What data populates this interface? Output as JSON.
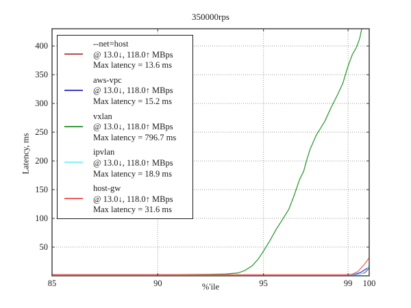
{
  "chart_data": {
    "type": "line",
    "title": "350000rps",
    "xlabel": "%'ile",
    "ylabel": "Latency, ms",
    "xlim": [
      85,
      100
    ],
    "ylim": [
      0,
      430
    ],
    "xticks": [
      85,
      90,
      95,
      99,
      100
    ],
    "yticks": [
      50,
      100,
      150,
      200,
      250,
      300,
      350,
      400
    ],
    "grid": "dotted",
    "legend_position": "upper-left",
    "frame_color": "#444444",
    "grid_color": "#999999",
    "series": [
      {
        "name": "--net=host",
        "rate": "@ 13.0↓, 118.0↑ MBps",
        "max_label": "Max latency = 13.6 ms",
        "max_latency_ms": 13.6,
        "color": "#bc4a47",
        "points": [
          [
            85,
            0.8
          ],
          [
            99,
            0.8
          ],
          [
            99.5,
            2
          ],
          [
            99.8,
            5.5
          ],
          [
            100,
            13.6
          ]
        ]
      },
      {
        "name": "aws-vpc",
        "rate": "@ 13.0↓, 118.0↑ MBps",
        "max_label": "Max latency = 15.2 ms",
        "max_latency_ms": 15.2,
        "color": "#3b3bcc",
        "points": [
          [
            85,
            1.5
          ],
          [
            98.8,
            1.5
          ],
          [
            99.3,
            2.3
          ],
          [
            99.6,
            6
          ],
          [
            99.8,
            11
          ],
          [
            100,
            15.2
          ]
        ]
      },
      {
        "name": "vxlan",
        "rate": "@ 13.0↓, 118.0↑ MBps",
        "max_label": "Max latency = 796.7 ms",
        "max_latency_ms": 796.7,
        "color": "#2e9b34",
        "points": [
          [
            85,
            2.3
          ],
          [
            91,
            2.3
          ],
          [
            92.5,
            2.6
          ],
          [
            93.2,
            3.2
          ],
          [
            93.8,
            5
          ],
          [
            94.1,
            9
          ],
          [
            94.45,
            17
          ],
          [
            94.75,
            29
          ],
          [
            95,
            43
          ],
          [
            95.3,
            61
          ],
          [
            95.6,
            81
          ],
          [
            95.9,
            98
          ],
          [
            96.2,
            116
          ],
          [
            96.45,
            140
          ],
          [
            96.7,
            167
          ],
          [
            96.9,
            182
          ],
          [
            97.05,
            202
          ],
          [
            97.2,
            220
          ],
          [
            97.5,
            245
          ],
          [
            97.9,
            269
          ],
          [
            98.2,
            293
          ],
          [
            98.5,
            315
          ],
          [
            98.75,
            335
          ],
          [
            99,
            365
          ],
          [
            99.2,
            385
          ],
          [
            99.4,
            398
          ],
          [
            99.55,
            413
          ],
          [
            99.75,
            448
          ]
        ]
      },
      {
        "name": "ipvlan",
        "rate": "@ 13.0↓, 118.0↑ MBps",
        "max_label": "Max latency = 18.9 ms",
        "max_latency_ms": 18.9,
        "color": "#7df5f5",
        "points": [
          [
            85,
            1.1
          ],
          [
            99.3,
            1.1
          ],
          [
            99.6,
            3
          ],
          [
            99.8,
            7
          ],
          [
            99.93,
            13
          ],
          [
            100,
            18.9
          ]
        ]
      },
      {
        "name": "host-gw",
        "rate": "@ 13.0↓, 118.0↑ MBps",
        "max_label": "Max latency = 31.6 ms",
        "max_latency_ms": 31.6,
        "color": "#f25f5f",
        "points": [
          [
            85,
            1.9
          ],
          [
            98.9,
            1.9
          ],
          [
            99.2,
            3
          ],
          [
            99.45,
            7
          ],
          [
            99.6,
            13
          ],
          [
            99.75,
            19
          ],
          [
            99.88,
            25.5
          ],
          [
            100,
            31.6
          ]
        ]
      }
    ]
  }
}
